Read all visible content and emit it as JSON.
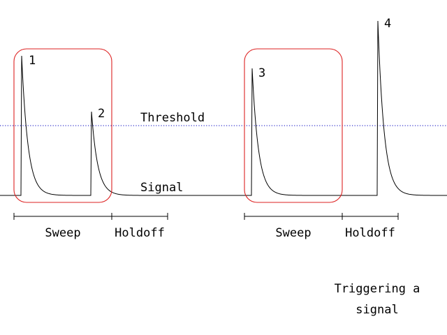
{
  "colors": {
    "signal": "#000000",
    "threshold": "#3333cc",
    "sweep_box": "#dd2222",
    "background": "#ffffff"
  },
  "labels": {
    "threshold": "Threshold",
    "signal": "Signal",
    "sweep": "Sweep",
    "holdoff": "Holdoff"
  },
  "peaks": [
    {
      "id": "1"
    },
    {
      "id": "2"
    },
    {
      "id": "3"
    },
    {
      "id": "4"
    }
  ],
  "caption": {
    "line1": "Triggering a",
    "line2": "signal"
  }
}
